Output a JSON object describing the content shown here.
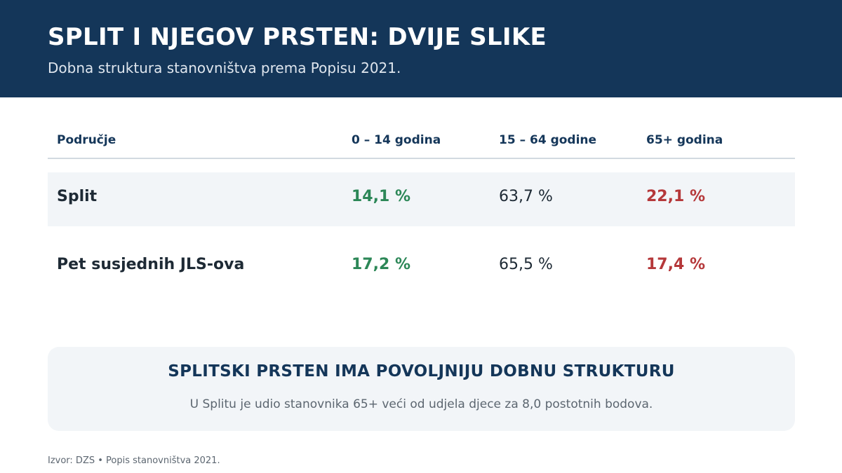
{
  "header": {
    "title": "SPLIT I NJEGOV PRSTEN: DVIJE SLIKE",
    "subtitle": "Dobna struktura stanovništva prema Popisu 2021."
  },
  "table": {
    "columns": [
      "Područje",
      "0 – 14 godina",
      "15 – 64 godine",
      "65+ godina"
    ],
    "rows": [
      {
        "area": "Split",
        "age_0_14": "14,1 %",
        "age_15_64": "63,7 %",
        "age_65_plus": "22,1 %"
      },
      {
        "area": "Pet susjednih JLS-ova",
        "age_0_14": "17,2 %",
        "age_15_64": "65,5 %",
        "age_65_plus": "17,4 %"
      }
    ]
  },
  "note": {
    "title": "SPLITSKI PRSTEN IMA POVOLJNIJU DOBNU STRUKTURU",
    "text": "U Splitu je udio stanovnika 65+ veći od udjela djece za 8,0 postotnih bodova."
  },
  "source": "Izvor: DZS • Popis stanovništva 2021.",
  "colors": {
    "header_bg": "#143659",
    "positive": "#2c8757",
    "negative": "#b5383a",
    "panel_bg": "#f2f5f8"
  }
}
